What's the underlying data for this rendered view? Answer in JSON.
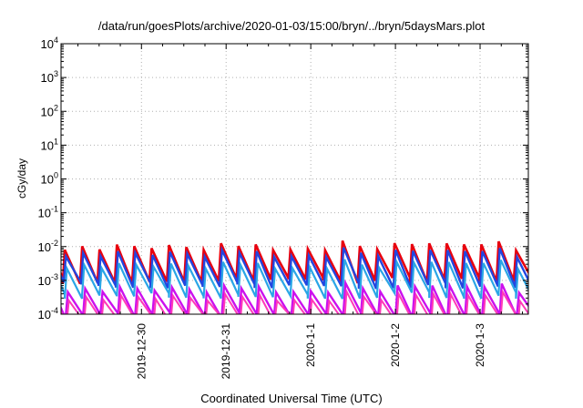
{
  "chart_data": {
    "type": "line",
    "title": "/data/run/goesPlots/archive/2020-01-03/15:00/bryn/../bryn/5daysMars.plot",
    "xlabel": "Coordinated Universal Time (UTC)",
    "ylabel": "cGy/day",
    "y_scale": "log",
    "ylim_exponent": [
      -4,
      4
    ],
    "y_ticks": [
      {
        "base": "10",
        "exp": "4"
      },
      {
        "base": "10",
        "exp": "3"
      },
      {
        "base": "10",
        "exp": "2"
      },
      {
        "base": "10",
        "exp": "1"
      },
      {
        "base": "10",
        "exp": "0"
      },
      {
        "base": "10",
        "exp": "-1"
      },
      {
        "base": "10",
        "exp": "-2"
      },
      {
        "base": "10",
        "exp": "-3"
      },
      {
        "base": "10",
        "exp": "-4"
      }
    ],
    "xlim_days": [
      -1.95,
      3.57
    ],
    "x_ticks": [
      {
        "label": "2019-12-30",
        "day": -1
      },
      {
        "label": "2019-12-31",
        "day": 0
      },
      {
        "label": "2020-1-1",
        "day": 1
      },
      {
        "label": "2020-1-2",
        "day": 2
      },
      {
        "label": "2020-1-3",
        "day": 3
      }
    ],
    "grid": true,
    "legend": "none",
    "series": [
      {
        "color": "#e8000e",
        "peak_exp": -1.95,
        "trough_exp": -3.0,
        "width": 2.6
      },
      {
        "color": "#2246e0",
        "peak_exp": -2.15,
        "trough_exp": -3.15,
        "width": 2.4
      },
      {
        "color": "#2aa6e6",
        "peak_exp": -2.5,
        "trough_exp": -3.45,
        "width": 2.2
      },
      {
        "color": "#cc10ee",
        "peak_exp": -3.2,
        "trough_exp": -4.05,
        "width": 2.4
      },
      {
        "color": "#ff3ab8",
        "peak_exp": -3.45,
        "trough_exp": -4.2,
        "width": 2.0
      }
    ],
    "period_days": 0.205
  }
}
